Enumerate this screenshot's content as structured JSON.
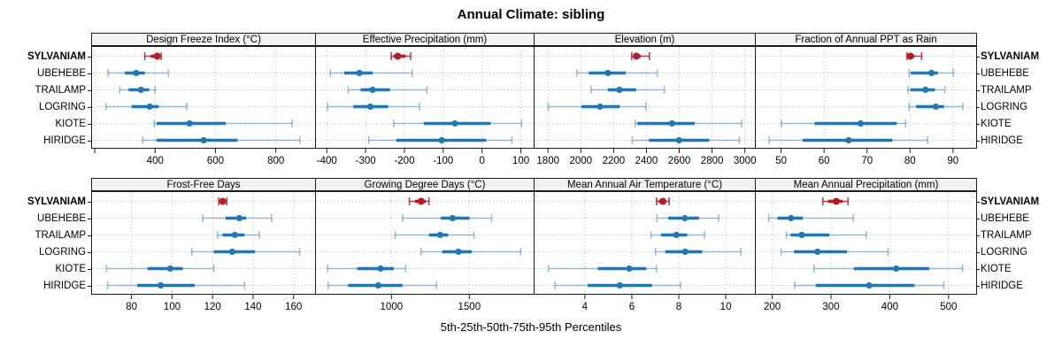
{
  "title": "Annual Climate: sibling",
  "caption": "5th-25th-50th-75th-95th Percentiles",
  "stations": [
    "SYLVANIAM",
    "UBEHEBE",
    "TRAILAMP",
    "LOGRING",
    "KIOTE",
    "HIRIDGE"
  ],
  "highlight_station": "SYLVANIAM",
  "colors": {
    "highlight": "#B01F24",
    "highlight_light": "rgba(176,31,36,0.85)",
    "normal": "#1F77B4",
    "normal_light": "rgba(31,119,180,0.45)",
    "grid": "#C9C9C9",
    "panel_border": "#1A1A1A",
    "strip_bg": "#F2F2F2",
    "text": "#000000"
  },
  "chart_data": [
    {
      "type": "dot-whisker",
      "title": "Design Freeze Index (°C)",
      "row": 0,
      "col": 0,
      "xlim": [
        191,
        930
      ],
      "ticks": [
        [
          200,
          ""
        ],
        [
          400,
          "400"
        ],
        [
          600,
          "600"
        ],
        [
          800,
          "800"
        ]
      ],
      "percentile_labels": [
        "5th",
        "25th",
        "50th",
        "75th",
        "95th"
      ],
      "values": [
        [
          366,
          385,
          407,
          413,
          420
        ],
        [
          244,
          300,
          337,
          366,
          444
        ],
        [
          283,
          312,
          353,
          380,
          400
        ],
        [
          237,
          322,
          382,
          412,
          505
        ],
        [
          397,
          405,
          514,
          634,
          854
        ],
        [
          359,
          405,
          561,
          673,
          880
        ]
      ]
    },
    {
      "type": "dot-whisker",
      "title": "Effective Precipitation (mm)",
      "row": 0,
      "col": 1,
      "xlim": [
        -428,
        133
      ],
      "ticks": [
        [
          -400,
          "-400"
        ],
        [
          -300,
          "-300"
        ],
        [
          -200,
          "-200"
        ],
        [
          -100,
          "-100"
        ],
        [
          0,
          "0"
        ],
        [
          100,
          "100"
        ]
      ],
      "percentile_labels": [
        "5th",
        "25th",
        "50th",
        "75th",
        "95th"
      ],
      "values": [
        [
          -234,
          -228,
          -217,
          -197,
          -184
        ],
        [
          -391,
          -355,
          -316,
          -282,
          -180
        ],
        [
          -345,
          -313,
          -282,
          -237,
          -142
        ],
        [
          -398,
          -332,
          -288,
          -242,
          -161
        ],
        [
          -228,
          -150,
          -70,
          22,
          102
        ],
        [
          -292,
          -221,
          -104,
          11,
          77
        ]
      ]
    },
    {
      "type": "dot-whisker",
      "title": "Elevation (m)",
      "row": 0,
      "col": 2,
      "xlim": [
        1718,
        3061
      ],
      "ticks": [
        [
          1800,
          "1800"
        ],
        [
          2000,
          "2000"
        ],
        [
          2200,
          "2200"
        ],
        [
          2400,
          "2400"
        ],
        [
          2600,
          "2600"
        ],
        [
          2800,
          "2800"
        ],
        [
          3000,
          "3000"
        ]
      ],
      "percentile_labels": [
        "5th",
        "25th",
        "50th",
        "75th",
        "95th"
      ],
      "values": [
        [
          2310,
          2318,
          2339,
          2365,
          2418
        ],
        [
          1977,
          2049,
          2165,
          2273,
          2466
        ],
        [
          2063,
          2165,
          2235,
          2337,
          2509
        ],
        [
          1802,
          2004,
          2117,
          2237,
          2396
        ],
        [
          2332,
          2345,
          2556,
          2694,
          2980
        ],
        [
          2314,
          2416,
          2599,
          2783,
          2966
        ]
      ]
    },
    {
      "type": "dot-whisker",
      "title": "Fraction of Annual PPT as Rain",
      "row": 0,
      "col": 3,
      "xlim": [
        44.1,
        95.4
      ],
      "ticks": [
        [
          50,
          "50"
        ],
        [
          60,
          "60"
        ],
        [
          70,
          "70"
        ],
        [
          80,
          "80"
        ],
        [
          90,
          "90"
        ]
      ],
      "percentile_labels": [
        "5th",
        "25th",
        "50th",
        "75th",
        "95th"
      ],
      "values": [
        [
          79.3,
          79.7,
          80.1,
          81.0,
          82.7
        ],
        [
          79.8,
          80.2,
          85.0,
          86.5,
          90.1
        ],
        [
          79.5,
          80.1,
          83.6,
          85.8,
          88.1
        ],
        [
          79.8,
          81.4,
          86.0,
          87.9,
          92.3
        ],
        [
          50.1,
          57.8,
          68.5,
          76.9,
          79.0
        ],
        [
          47.2,
          55.0,
          65.7,
          75.9,
          84.1
        ]
      ]
    },
    {
      "type": "dot-whisker",
      "title": "Frost-Free Days",
      "row": 1,
      "col": 0,
      "xlim": [
        60.5,
        170.6
      ],
      "ticks": [
        [
          80,
          "80"
        ],
        [
          100,
          "100"
        ],
        [
          120,
          "120"
        ],
        [
          140,
          "140"
        ],
        [
          160,
          "160"
        ]
      ],
      "percentile_labels": [
        "5th",
        "25th",
        "50th",
        "75th",
        "95th"
      ],
      "values": [
        [
          123,
          124,
          125,
          126,
          127
        ],
        [
          115.1,
          126.4,
          133.2,
          136.6,
          149.2
        ],
        [
          122.5,
          124.9,
          131.0,
          135.8,
          143.1
        ],
        [
          109.7,
          120.6,
          129.7,
          141.0,
          163.0
        ],
        [
          67.5,
          87.9,
          99.1,
          105.3,
          120.6
        ],
        [
          68.2,
          82.8,
          94.4,
          111.1,
          135.8
        ]
      ]
    },
    {
      "type": "dot-whisker",
      "title": "Growing Degree Days (°C)",
      "row": 1,
      "col": 1,
      "xlim": [
        515,
        1913
      ],
      "ticks": [
        [
          1000,
          "1000"
        ],
        [
          1500,
          "1500"
        ]
      ],
      "percentile_labels": [
        "5th",
        "25th",
        "50th",
        "75th",
        "95th"
      ],
      "values": [
        [
          1115,
          1150,
          1190,
          1220,
          1241
        ],
        [
          1071,
          1317,
          1392,
          1502,
          1643
        ],
        [
          1024,
          1241,
          1313,
          1364,
          1530
        ],
        [
          1190,
          1326,
          1430,
          1515,
          1830
        ],
        [
          590,
          779,
          930,
          1015,
          1091
        ],
        [
          594,
          722,
          915,
          1071,
          1289
        ]
      ]
    },
    {
      "type": "dot-whisker",
      "title": "Mean Annual Air Temperature (°C)",
      "row": 1,
      "col": 2,
      "xlim": [
        1.86,
        11.24
      ],
      "ticks": [
        [
          4,
          "4"
        ],
        [
          6,
          "6"
        ],
        [
          8,
          "8"
        ],
        [
          10,
          "10"
        ]
      ],
      "percentile_labels": [
        "5th",
        "25th",
        "50th",
        "75th",
        "95th"
      ],
      "values": [
        [
          7.05,
          7.15,
          7.32,
          7.45,
          7.59
        ],
        [
          7.07,
          7.55,
          8.26,
          8.86,
          9.7
        ],
        [
          6.82,
          7.24,
          7.9,
          8.36,
          9.09
        ],
        [
          7.01,
          7.42,
          8.27,
          9.0,
          10.64
        ],
        [
          2.45,
          4.55,
          5.89,
          6.62,
          7.05
        ],
        [
          2.73,
          4.12,
          5.49,
          6.86,
          8.08
        ]
      ]
    },
    {
      "type": "dot-whisker",
      "title": "Mean Annual Precipitation (mm)",
      "row": 1,
      "col": 3,
      "xlim": [
        172,
        547
      ],
      "ticks": [
        [
          200,
          "200"
        ],
        [
          300,
          "300"
        ],
        [
          400,
          "400"
        ],
        [
          500,
          "500"
        ]
      ],
      "percentile_labels": [
        "5th",
        "25th",
        "50th",
        "75th",
        "95th"
      ],
      "values": [
        [
          286,
          295,
          309,
          320,
          329
        ],
        [
          194,
          209,
          232,
          252,
          338
        ],
        [
          224,
          231,
          250,
          297,
          360
        ],
        [
          215,
          237,
          277,
          327,
          397
        ],
        [
          271,
          339,
          411,
          467,
          524
        ],
        [
          238,
          274,
          365,
          442,
          492
        ]
      ]
    }
  ]
}
